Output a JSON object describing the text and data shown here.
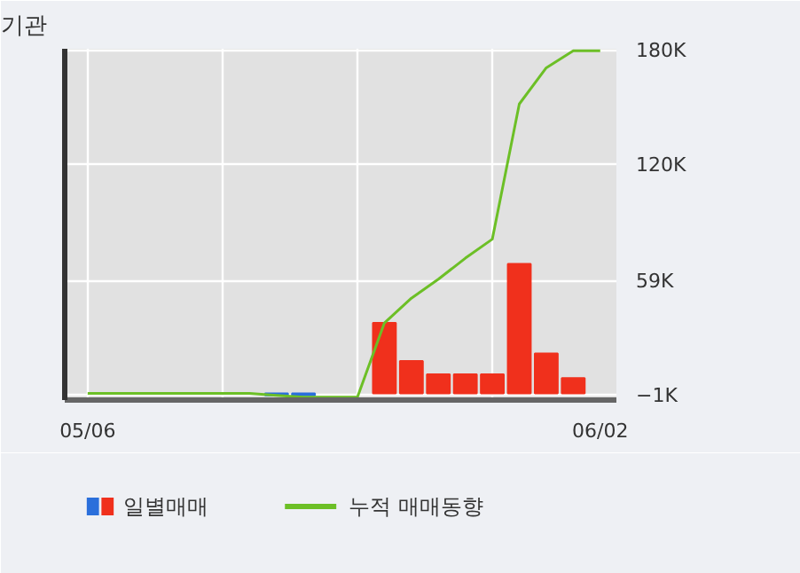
{
  "chart_data": {
    "type": "bar",
    "title": "기관",
    "categories": [
      "05/06",
      null,
      null,
      null,
      null,
      null,
      null,
      null,
      null,
      null,
      null,
      null,
      null,
      null,
      null,
      null,
      null,
      null,
      null,
      "06/02"
    ],
    "series": [
      {
        "name": "일별매매",
        "values": [
          null,
          null,
          null,
          null,
          null,
          null,
          null,
          -1,
          -1,
          null,
          null,
          37,
          17,
          10,
          10,
          10,
          68,
          21,
          8,
          null
        ],
        "colors": [
          "#2a6fdb",
          "#2a6fdb",
          "#2a6fdb",
          "#2a6fdb",
          "#2a6fdb",
          "#2a6fdb",
          "#2a6fdb",
          "#2a6fdb",
          "#2a6fdb",
          "#2a6fdb",
          "#2a6fdb",
          "#f0301c",
          "#f0301c",
          "#f0301c",
          "#f0301c",
          "#f0301c",
          "#f0301c",
          "#f0301c",
          "#f0301c",
          "#f0301c"
        ]
      },
      {
        "name": "누적 매매동향",
        "type": "line",
        "color": "#6cbf26",
        "values": [
          0,
          0,
          0,
          0,
          0,
          0,
          0,
          -1,
          -2,
          -2,
          -2,
          37,
          50,
          60,
          71,
          81,
          152,
          171,
          180,
          180
        ]
      }
    ],
    "ylim": [
      -3.5,
      181
    ],
    "yticks": [
      {
        "value": 180,
        "label": "180K"
      },
      {
        "value": 120,
        "label": "120K"
      },
      {
        "value": 59,
        "label": "59K"
      },
      {
        "value": -1,
        "label": "−1K"
      }
    ],
    "grid": true,
    "legend": "bottom"
  }
}
